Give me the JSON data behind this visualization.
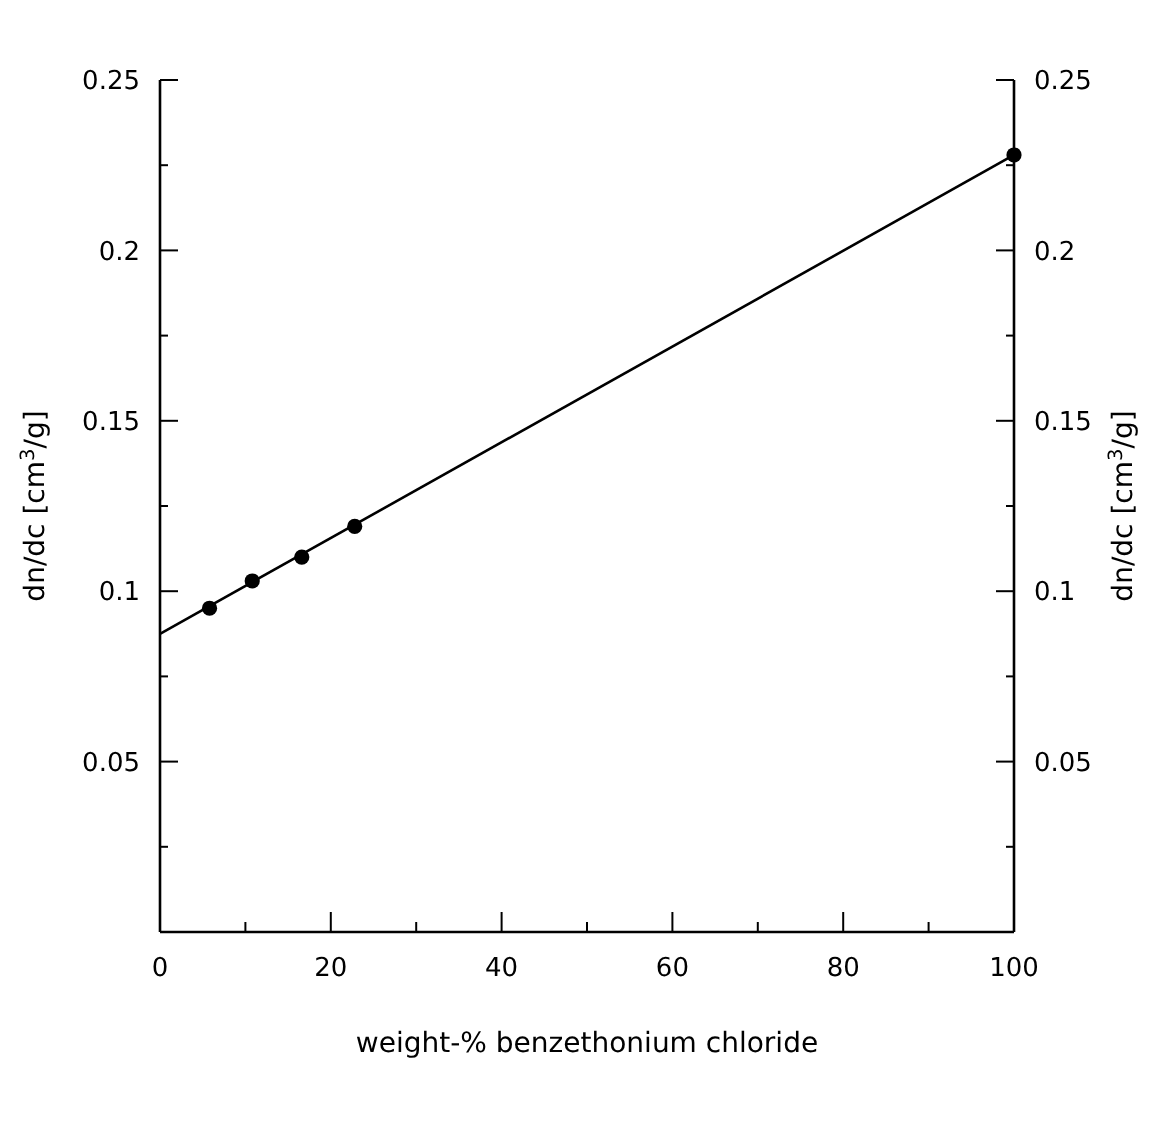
{
  "chart_data": {
    "type": "scatter",
    "xlabel": "weight-% benzethonium chloride",
    "ylabel": "dn/dc [cm$^{3}$/g]",
    "y2label": "dn/dc [cm$^{3}$/g]",
    "xlim": [
      0,
      100
    ],
    "xticks": [
      0,
      {
        "value": 10,
        "label": null
      },
      20,
      {
        "value": 30,
        "label": null
      },
      40,
      {
        "value": 50,
        "label": null
      },
      60,
      {
        "value": 70,
        "label": null
      },
      80,
      {
        "value": 90,
        "label": null
      },
      100
    ],
    "ylim": [
      0,
      0.25
    ],
    "yticks": [
      {
        "value": 0.025,
        "label": null
      },
      0.05,
      {
        "value": 0.075,
        "label": null
      },
      0.1,
      {
        "value": 0.125,
        "label": null
      },
      0.15,
      {
        "value": 0.175,
        "label": null
      },
      0.2,
      {
        "value": 0.225,
        "label": null
      },
      0.25
    ],
    "y2lim": [
      0,
      0.25
    ],
    "y2ticks": [
      {
        "value": 0.025,
        "label": null
      },
      0.05,
      {
        "value": 0.075,
        "label": null
      },
      0.1,
      {
        "value": 0.125,
        "label": null
      },
      0.15,
      {
        "value": 0.175,
        "label": null
      },
      0.2,
      {
        "value": 0.225,
        "label": null
      },
      0.25
    ],
    "grid": false,
    "series": [
      {
        "marker": "circle",
        "color": "#000000",
        "x": [
          5.8,
          10.8,
          16.6,
          22.8,
          100
        ],
        "values": [
          0.095,
          0.103,
          0.11,
          0.119,
          0.228
        ]
      },
      {
        "type": "line",
        "marker": "none",
        "color": "#000000",
        "x": [
          0,
          100
        ],
        "values": [
          0.0875,
          0.228
        ]
      }
    ]
  }
}
